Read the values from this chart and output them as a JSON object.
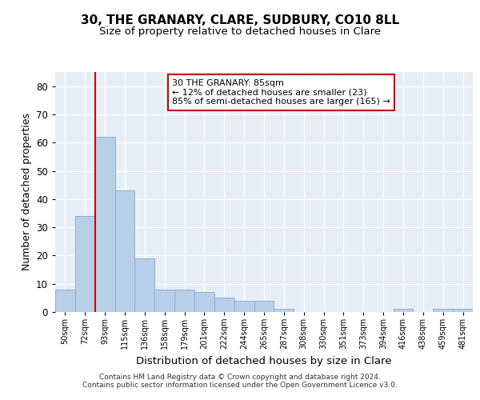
{
  "title": "30, THE GRANARY, CLARE, SUDBURY, CO10 8LL",
  "subtitle": "Size of property relative to detached houses in Clare",
  "xlabel": "Distribution of detached houses by size in Clare",
  "ylabel": "Number of detached properties",
  "categories": [
    "50sqm",
    "72sqm",
    "93sqm",
    "115sqm",
    "136sqm",
    "158sqm",
    "179sqm",
    "201sqm",
    "222sqm",
    "244sqm",
    "265sqm",
    "287sqm",
    "308sqm",
    "330sqm",
    "351sqm",
    "373sqm",
    "394sqm",
    "416sqm",
    "438sqm",
    "459sqm",
    "481sqm"
  ],
  "values": [
    8,
    34,
    62,
    43,
    19,
    8,
    8,
    7,
    5,
    4,
    4,
    1,
    0,
    0,
    0,
    0,
    0,
    1,
    0,
    1,
    1
  ],
  "bar_color": "#b8cfe8",
  "bar_edge_color": "#8aaed4",
  "vline_x": 2.0,
  "vline_color": "#cc0000",
  "ylim": [
    0,
    85
  ],
  "yticks": [
    0,
    10,
    20,
    30,
    40,
    50,
    60,
    70,
    80
  ],
  "annotation_box_text": "30 THE GRANARY: 85sqm\n← 12% of detached houses are smaller (23)\n85% of semi-detached houses are larger (165) →",
  "annotation_box_color": "#cc0000",
  "footnote1": "Contains HM Land Registry data © Crown copyright and database right 2024.",
  "footnote2": "Contains public sector information licensed under the Open Government Licence v3.0.",
  "bg_color": "#e8eef5",
  "title_fontsize": 11,
  "subtitle_fontsize": 9.5,
  "ylabel_fontsize": 9,
  "xlabel_fontsize": 9.5
}
